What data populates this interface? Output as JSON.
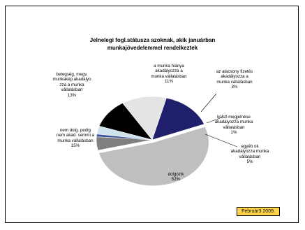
{
  "chart_data": {
    "type": "pie",
    "title_lines": [
      "Jelnelegi fogl.státusza azoknak, akik januárban",
      "munkajövedelemmel rendelkeztek"
    ],
    "slices": [
      {
        "label_lines": [
          "dolgozik"
        ],
        "value": 52,
        "value_label": "52%",
        "color": "#bfbfbf"
      },
      {
        "label_lines": [
          "nem dolg. pedig",
          "nem akad. semmi a",
          "munka vállalásban"
        ],
        "value": 15,
        "value_label": "15%",
        "color": "#1f1f6b"
      },
      {
        "label_lines": [
          "betegség, megv.",
          "munkakép.akadályo",
          "zza a munka",
          "vállalásban"
        ],
        "value": 13,
        "value_label": "13%",
        "color": "#e4e4e4"
      },
      {
        "label_lines": [
          "a munka hiánya",
          "akadályozza a",
          "munka vállalásban"
        ],
        "value": 11,
        "value_label": "11%",
        "color": "#000000"
      },
      {
        "label_lines": [
          "az alacsony fizetés",
          "akadályozza a",
          "munka vállalásban"
        ],
        "value": 3,
        "value_label": "3%",
        "color": "#cfe3ee"
      },
      {
        "label_lines": [
          "külső megjelnése",
          "akadályozza munka",
          "vállalásban"
        ],
        "value": 1,
        "value_label": "1%",
        "color": "#3a4f9a"
      },
      {
        "label_lines": [
          "egyéb ok",
          "akadályozza munka",
          "vállalásban"
        ],
        "value": 5,
        "value_label": "5%",
        "color": "#7f7f7f"
      }
    ],
    "legend": "none"
  },
  "date_label": "Február3 2009."
}
